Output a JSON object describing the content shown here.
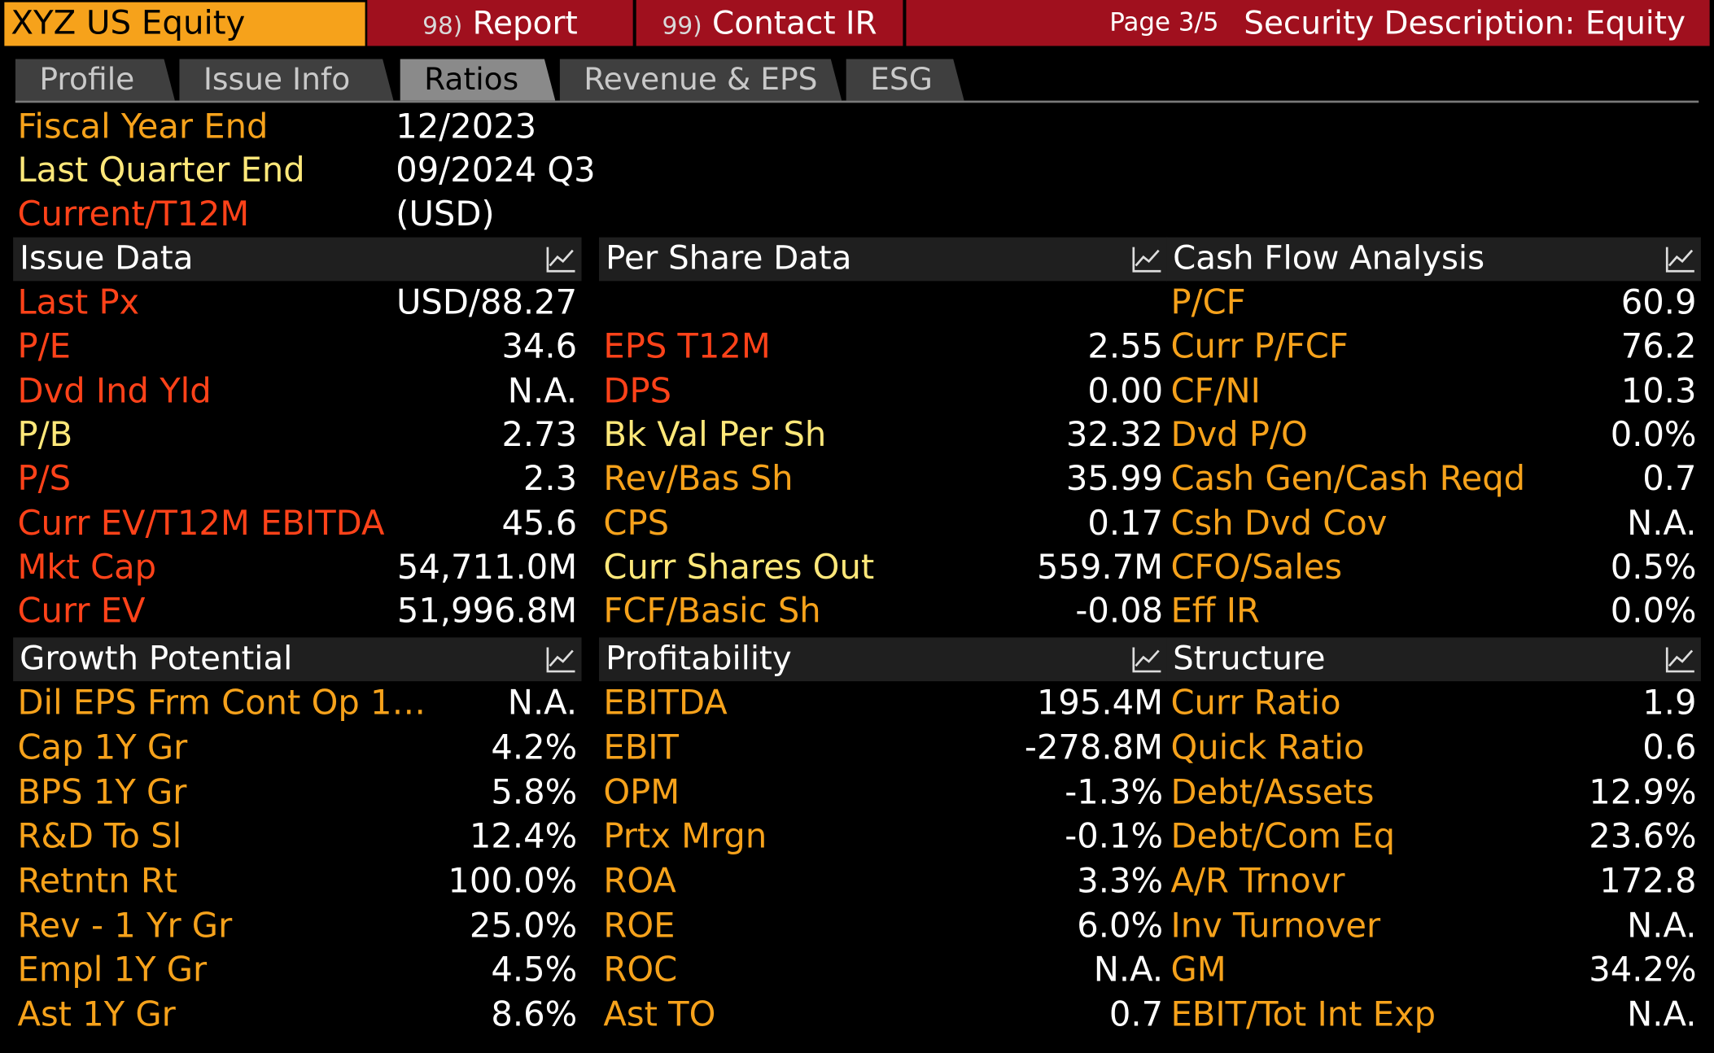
{
  "topbar": {
    "ticker": "XYZ US Equity",
    "report_num": "98)",
    "report_label": "Report",
    "contact_num": "99)",
    "contact_label": "Contact IR",
    "page": "Page 3/5",
    "title": "Security Description: Equity"
  },
  "tabs": [
    {
      "label": "Profile"
    },
    {
      "label": "Issue Info"
    },
    {
      "label": "Ratios",
      "active": true
    },
    {
      "label": "Revenue & EPS"
    },
    {
      "label": "ESG"
    }
  ],
  "info": [
    {
      "label": "Fiscal Year End",
      "value": "12/2023"
    },
    {
      "label": "Last Quarter End",
      "value": "09/2024 Q3"
    },
    {
      "label": "Current/T12M",
      "value": "(USD)"
    }
  ],
  "panels": {
    "issue_data": {
      "title": "Issue Data",
      "rows": [
        {
          "label": "Last Px",
          "value": "USD/88.27"
        },
        {
          "label": "P/E",
          "value": "34.6"
        },
        {
          "label": "Dvd Ind Yld",
          "value": "N.A."
        },
        {
          "label": "P/B",
          "value": "2.73"
        },
        {
          "label": "P/S",
          "value": "2.3"
        },
        {
          "label": "Curr EV/T12M EBITDA",
          "value": "45.6"
        },
        {
          "label": "Mkt Cap",
          "value": "54,711.0M"
        },
        {
          "label": "Curr EV",
          "value": "51,996.8M"
        }
      ]
    },
    "per_share": {
      "title": "Per Share Data",
      "rows": [
        {
          "label": "",
          "value": ""
        },
        {
          "label": "EPS T12M",
          "value": "2.55"
        },
        {
          "label": "DPS",
          "value": "0.00"
        },
        {
          "label": "Bk Val Per Sh",
          "value": "32.32"
        },
        {
          "label": "Rev/Bas Sh",
          "value": "35.99"
        },
        {
          "label": "CPS",
          "value": "0.17"
        },
        {
          "label": "Curr Shares Out",
          "value": "559.7M"
        },
        {
          "label": "FCF/Basic Sh",
          "value": "-0.08"
        }
      ]
    },
    "cash_flow": {
      "title": "Cash Flow Analysis",
      "rows": [
        {
          "label": "P/CF",
          "value": "60.9"
        },
        {
          "label": "Curr P/FCF",
          "value": "76.2"
        },
        {
          "label": "CF/NI",
          "value": "10.3"
        },
        {
          "label": "Dvd P/O",
          "value": "0.0%"
        },
        {
          "label": "Cash Gen/Cash Reqd",
          "value": "0.7"
        },
        {
          "label": "Csh Dvd Cov",
          "value": "N.A."
        },
        {
          "label": "CFO/Sales",
          "value": "0.5%"
        },
        {
          "label": "Eff IR",
          "value": "0.0%"
        }
      ]
    },
    "growth": {
      "title": "Growth Potential",
      "rows": [
        {
          "label": "Dil EPS Frm Cont Op 1…",
          "value": "N.A."
        },
        {
          "label": "Cap 1Y Gr",
          "value": "4.2%"
        },
        {
          "label": "BPS 1Y Gr",
          "value": "5.8%"
        },
        {
          "label": "R&D To Sl",
          "value": "12.4%"
        },
        {
          "label": "Retntn Rt",
          "value": "100.0%"
        },
        {
          "label": "Rev - 1 Yr Gr",
          "value": "25.0%"
        },
        {
          "label": "Empl 1Y Gr",
          "value": "4.5%"
        },
        {
          "label": "Ast 1Y Gr",
          "value": "8.6%"
        }
      ]
    },
    "profitability": {
      "title": "Profitability",
      "rows": [
        {
          "label": "EBITDA",
          "value": "195.4M"
        },
        {
          "label": "EBIT",
          "value": "-278.8M"
        },
        {
          "label": "OPM",
          "value": "-1.3%"
        },
        {
          "label": "Prtx Mrgn",
          "value": "-0.1%"
        },
        {
          "label": "ROA",
          "value": "3.3%"
        },
        {
          "label": "ROE",
          "value": "6.0%"
        },
        {
          "label": "ROC",
          "value": "N.A."
        },
        {
          "label": "Ast TO",
          "value": "0.7"
        }
      ]
    },
    "structure": {
      "title": "Structure",
      "rows": [
        {
          "label": "Curr Ratio",
          "value": "1.9"
        },
        {
          "label": "Quick Ratio",
          "value": "0.6"
        },
        {
          "label": "Debt/Assets",
          "value": "12.9%"
        },
        {
          "label": "Debt/Com Eq",
          "value": "23.6%"
        },
        {
          "label": "A/R Trnovr",
          "value": "172.8"
        },
        {
          "label": "Inv Turnover",
          "value": "N.A."
        },
        {
          "label": "GM",
          "value": "34.2%"
        },
        {
          "label": "EBIT/Tot Int Exp",
          "value": "N.A."
        }
      ]
    }
  },
  "colors": {
    "ticker_bg": "#f6a21b",
    "topbar_red": "#a0101e",
    "label_orange": "#f6a21b",
    "label_yellow": "#ffe87a",
    "label_red": "#ff4219",
    "panel_header_bg": "#1f1f1f"
  },
  "icons": {
    "panel_chart": "line-chart-icon"
  }
}
